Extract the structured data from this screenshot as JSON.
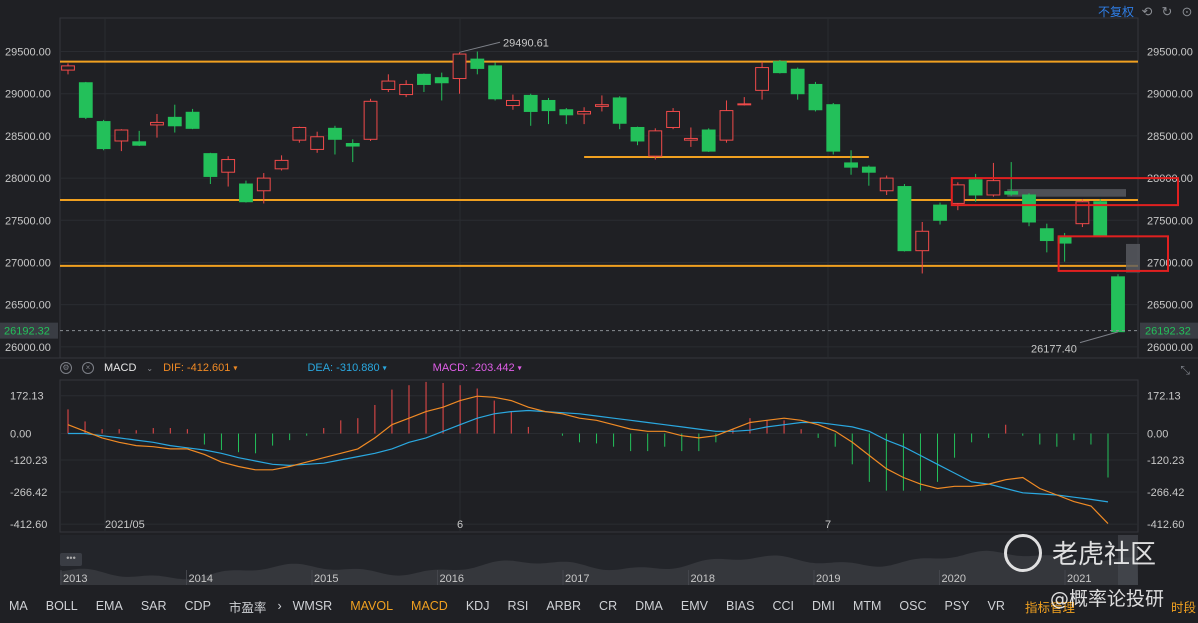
{
  "header": {
    "adjust_label": "不复权"
  },
  "chart_data": {
    "type": "candlestick",
    "price_axis": {
      "ticks": [
        29500,
        29000,
        28500,
        28000,
        27500,
        27000,
        26500,
        26000
      ],
      "tick_labels": [
        "29500.00",
        "29000.00",
        "28500.00",
        "28000.00",
        "27500.00",
        "27000.00",
        "26500.00",
        "26000.00"
      ],
      "ylim": [
        25880,
        29850
      ]
    },
    "last_price_label": "26192.32",
    "last_price": 26192.32,
    "high_annotation": {
      "label": "29490.61",
      "value": 29490.61
    },
    "low_annotation": {
      "label": "26177.40",
      "value": 26177.4
    },
    "x_labels": [
      "2021/05",
      "6",
      "7"
    ],
    "candles": [
      {
        "o": 29280,
        "c": 29330,
        "h": 29360,
        "l": 29230
      },
      {
        "o": 29130,
        "c": 28720,
        "h": 29140,
        "l": 28700
      },
      {
        "o": 28670,
        "c": 28350,
        "h": 28690,
        "l": 28330
      },
      {
        "o": 28440,
        "c": 28570,
        "h": 28580,
        "l": 28320
      },
      {
        "o": 28430,
        "c": 28390,
        "h": 28560,
        "l": 28380
      },
      {
        "o": 28630,
        "c": 28660,
        "h": 28760,
        "l": 28480
      },
      {
        "o": 28720,
        "c": 28620,
        "h": 28870,
        "l": 28540
      },
      {
        "o": 28780,
        "c": 28590,
        "h": 28820,
        "l": 28580
      },
      {
        "o": 28290,
        "c": 28020,
        "h": 28300,
        "l": 27930
      },
      {
        "o": 28070,
        "c": 28220,
        "h": 28260,
        "l": 27900
      },
      {
        "o": 27930,
        "c": 27720,
        "h": 27970,
        "l": 27710
      },
      {
        "o": 27850,
        "c": 28000,
        "h": 28060,
        "l": 27700
      },
      {
        "o": 28110,
        "c": 28210,
        "h": 28270,
        "l": 28090
      },
      {
        "o": 28450,
        "c": 28600,
        "h": 28610,
        "l": 28420
      },
      {
        "o": 28340,
        "c": 28490,
        "h": 28550,
        "l": 28300
      },
      {
        "o": 28590,
        "c": 28460,
        "h": 28620,
        "l": 28280
      },
      {
        "o": 28410,
        "c": 28380,
        "h": 28460,
        "l": 28190
      },
      {
        "o": 28460,
        "c": 28910,
        "h": 28940,
        "l": 28440
      },
      {
        "o": 29050,
        "c": 29150,
        "h": 29230,
        "l": 29020
      },
      {
        "o": 28990,
        "c": 29110,
        "h": 29160,
        "l": 28960
      },
      {
        "o": 29230,
        "c": 29110,
        "h": 29240,
        "l": 29020
      },
      {
        "o": 29190,
        "c": 29130,
        "h": 29250,
        "l": 28920
      },
      {
        "o": 29180,
        "c": 29470,
        "h": 29490,
        "l": 29000
      },
      {
        "o": 29410,
        "c": 29300,
        "h": 29500,
        "l": 29230
      },
      {
        "o": 29330,
        "c": 28940,
        "h": 29370,
        "l": 28920
      },
      {
        "o": 28860,
        "c": 28920,
        "h": 28990,
        "l": 28810
      },
      {
        "o": 28980,
        "c": 28790,
        "h": 29000,
        "l": 28620
      },
      {
        "o": 28920,
        "c": 28800,
        "h": 28950,
        "l": 28640
      },
      {
        "o": 28810,
        "c": 28750,
        "h": 28830,
        "l": 28640
      },
      {
        "o": 28760,
        "c": 28790,
        "h": 28840,
        "l": 28640
      },
      {
        "o": 28850,
        "c": 28870,
        "h": 28980,
        "l": 28790
      },
      {
        "o": 28950,
        "c": 28650,
        "h": 28970,
        "l": 28580
      },
      {
        "o": 28600,
        "c": 28440,
        "h": 28610,
        "l": 28390
      },
      {
        "o": 28260,
        "c": 28560,
        "h": 28590,
        "l": 28220
      },
      {
        "o": 28600,
        "c": 28790,
        "h": 28830,
        "l": 28580
      },
      {
        "o": 28450,
        "c": 28470,
        "h": 28600,
        "l": 28370
      },
      {
        "o": 28570,
        "c": 28320,
        "h": 28590,
        "l": 28310
      },
      {
        "o": 28450,
        "c": 28800,
        "h": 28920,
        "l": 28420
      },
      {
        "o": 28870,
        "c": 28880,
        "h": 28960,
        "l": 28860
      },
      {
        "o": 29040,
        "c": 29310,
        "h": 29380,
        "l": 28930
      },
      {
        "o": 29380,
        "c": 29250,
        "h": 29400,
        "l": 29240
      },
      {
        "o": 29290,
        "c": 29000,
        "h": 29310,
        "l": 28930
      },
      {
        "o": 29110,
        "c": 28810,
        "h": 29140,
        "l": 28790
      },
      {
        "o": 28870,
        "c": 28320,
        "h": 28890,
        "l": 28280
      },
      {
        "o": 28180,
        "c": 28130,
        "h": 28330,
        "l": 28040
      },
      {
        "o": 28130,
        "c": 28070,
        "h": 28150,
        "l": 27910
      },
      {
        "o": 27850,
        "c": 28000,
        "h": 28030,
        "l": 27800
      },
      {
        "o": 27900,
        "c": 27140,
        "h": 27930,
        "l": 27130
      },
      {
        "o": 27140,
        "c": 27370,
        "h": 27480,
        "l": 26870
      },
      {
        "o": 27680,
        "c": 27500,
        "h": 27710,
        "l": 27450
      },
      {
        "o": 27700,
        "c": 27920,
        "h": 27950,
        "l": 27620
      },
      {
        "o": 27980,
        "c": 27800,
        "h": 28050,
        "l": 27720
      },
      {
        "o": 27800,
        "c": 27970,
        "h": 28180,
        "l": 27780
      },
      {
        "o": 27840,
        "c": 27810,
        "h": 28190,
        "l": 27790
      },
      {
        "o": 27800,
        "c": 27480,
        "h": 27820,
        "l": 27430
      },
      {
        "o": 27400,
        "c": 27260,
        "h": 27460,
        "l": 27120
      },
      {
        "o": 27300,
        "c": 27230,
        "h": 27350,
        "l": 27010
      },
      {
        "o": 27460,
        "c": 27720,
        "h": 27750,
        "l": 27420
      },
      {
        "o": 27720,
        "c": 27310,
        "h": 27750,
        "l": 27300
      },
      {
        "o": 26830,
        "c": 26180,
        "h": 26860,
        "l": 26177
      }
    ],
    "h_levels": [
      29380,
      27740,
      26960,
      28250
    ],
    "macd": {
      "name": "MACD",
      "dif_label": "DIF: -412.601",
      "dea_label": "DEA: -310.880",
      "macd_label": "MACD: -203.442",
      "axis_ticks": [
        172.13,
        0,
        -120.23,
        -266.42,
        -412.6
      ],
      "axis_labels": [
        "172.13",
        "0.00",
        "-120.23",
        "-266.42",
        "-412.60"
      ],
      "ylim": [
        -430,
        230
      ],
      "dif": [
        40,
        10,
        -20,
        -40,
        -55,
        -60,
        -70,
        -70,
        -95,
        -130,
        -150,
        -165,
        -165,
        -150,
        -130,
        -110,
        -90,
        -70,
        -20,
        40,
        70,
        100,
        120,
        150,
        170,
        165,
        150,
        120,
        100,
        90,
        70,
        60,
        40,
        20,
        10,
        10,
        -10,
        -20,
        -10,
        20,
        50,
        60,
        70,
        60,
        40,
        10,
        -40,
        -100,
        -160,
        -200,
        -230,
        -250,
        -240,
        -240,
        -230,
        -210,
        -200,
        -250,
        -280,
        -310,
        -330,
        -410
      ],
      "dea": [
        0,
        0,
        -10,
        -20,
        -30,
        -40,
        -55,
        -65,
        -75,
        -90,
        -110,
        -125,
        -140,
        -145,
        -140,
        -135,
        -120,
        -105,
        -90,
        -70,
        -40,
        -20,
        10,
        40,
        70,
        90,
        100,
        105,
        100,
        95,
        90,
        80,
        70,
        60,
        50,
        40,
        30,
        20,
        10,
        10,
        15,
        30,
        40,
        50,
        50,
        40,
        30,
        10,
        -30,
        -60,
        -100,
        -140,
        -180,
        -220,
        -230,
        -250,
        -270,
        -275,
        -280,
        -290,
        -300,
        -311
      ],
      "hist": [
        110,
        55,
        20,
        20,
        15,
        25,
        25,
        20,
        -50,
        -75,
        -85,
        -90,
        -55,
        -30,
        -10,
        25,
        60,
        70,
        130,
        200,
        220,
        235,
        230,
        220,
        205,
        150,
        100,
        30,
        0,
        -10,
        -40,
        -45,
        -60,
        -80,
        -80,
        -60,
        -80,
        -80,
        -40,
        20,
        70,
        60,
        60,
        20,
        -20,
        -60,
        -140,
        -220,
        -260,
        -260,
        -260,
        -220,
        -110,
        -40,
        -20,
        40,
        -10,
        -50,
        -60,
        -30,
        -50,
        -200
      ]
    },
    "timeline": {
      "years": [
        "2013",
        "2014",
        "2015",
        "2016",
        "2017",
        "2018",
        "2019",
        "2020",
        "2021"
      ]
    }
  },
  "indicators": {
    "items": [
      "MA",
      "BOLL",
      "EMA",
      "SAR",
      "CDP",
      "市盈率",
      "WMSR",
      "MAVOL",
      "MACD",
      "KDJ",
      "RSI",
      "ARBR",
      "CR",
      "DMA",
      "EMV",
      "BIAS",
      "CCI",
      "DMI",
      "MTM",
      "OSC",
      "PSY",
      "VR"
    ],
    "active": [
      "MAVOL",
      "MACD"
    ],
    "settings_label": "指标管理",
    "period_label": "时段"
  },
  "watermark": {
    "brand": "老虎社区",
    "sub": "@概率论投研"
  },
  "colors": {
    "up": "#f04a4a",
    "down": "#23c05a",
    "level": "#f0a020",
    "dif": "#f08a24",
    "dea": "#2aa8e0",
    "macd": "#e05ee8",
    "highlight": "#e02020"
  }
}
